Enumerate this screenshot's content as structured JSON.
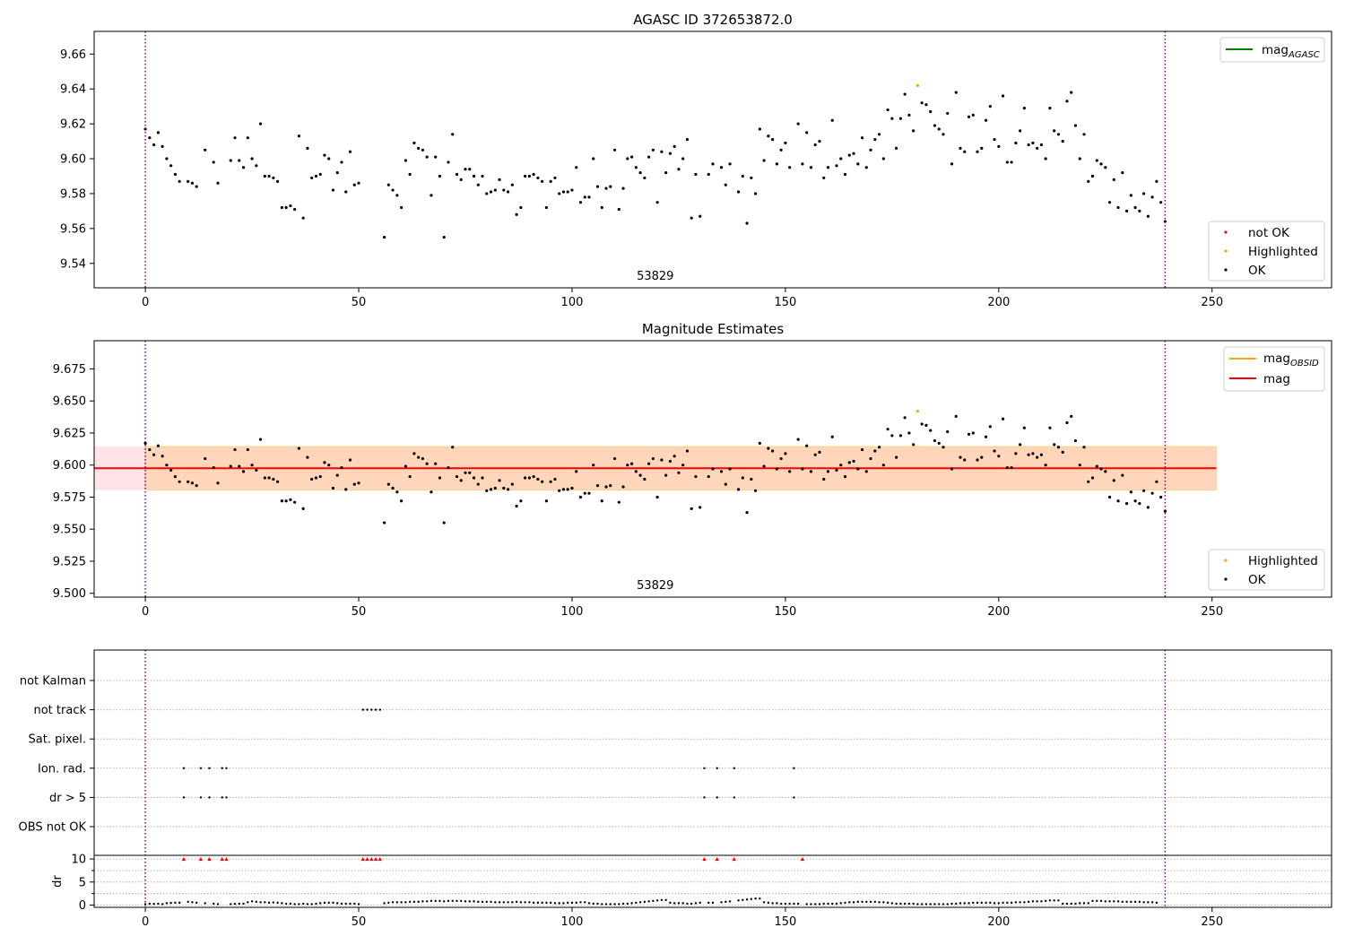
{
  "chart_data": [
    {
      "type": "scatter",
      "title": "AGASC ID 372653872.0",
      "xlim": [
        -12,
        278
      ],
      "ylim": [
        9.526,
        9.673
      ],
      "xticks": [
        0,
        50,
        100,
        150,
        200,
        250
      ],
      "yticks": [
        9.54,
        9.56,
        9.58,
        9.6,
        9.62,
        9.64,
        9.66
      ],
      "obsid_label": "53829",
      "obsid_boundaries": [
        0,
        239
      ],
      "legend_top": {
        "placement": "top-right",
        "entries": [
          {
            "label": "mag",
            "subscript": "AGASC",
            "color": "#008000"
          }
        ]
      },
      "legend_bottom": {
        "placement": "lower-right",
        "entries": [
          {
            "label": "not OK",
            "color": "#ff0000"
          },
          {
            "label": "Highlighted",
            "color": "#ffa500"
          },
          {
            "label": "OK",
            "color": "#000000"
          }
        ]
      },
      "series": [
        {
          "name": "OK",
          "color": "#000000",
          "source": "shared.mag_points"
        },
        {
          "name": "Highlighted",
          "color": "#ffa500",
          "points": [
            [
              181,
              9.642
            ]
          ]
        }
      ]
    },
    {
      "type": "scatter",
      "title": "Magnitude Estimates",
      "xlim": [
        -12,
        278
      ],
      "ylim": [
        9.497,
        9.697
      ],
      "xticks": [
        0,
        50,
        100,
        150,
        200,
        250
      ],
      "yticks": [
        "9.500",
        "9.525",
        "9.550",
        "9.575",
        "9.600",
        "9.625",
        "9.650",
        "9.675"
      ],
      "obsid_label": "53829",
      "obsid_boundaries": [
        0,
        239
      ],
      "mag_line": {
        "value": 9.5975,
        "x_range": [
          -12,
          251
        ],
        "color": "#ff0000"
      },
      "mag_band": {
        "low": 9.5805,
        "high": 9.6145,
        "x_range": [
          -12,
          251
        ],
        "color": "#ffc0cb"
      },
      "mag_obsid_band": {
        "low": 9.5805,
        "high": 9.6145,
        "x_range": [
          0,
          251
        ],
        "color": "#ffa500"
      },
      "legend_top": {
        "placement": "top-right",
        "entries": [
          {
            "label": "mag",
            "subscript": "OBSID",
            "color": "#ffa500"
          },
          {
            "label": "mag",
            "subscript": "",
            "color": "#ff0000"
          }
        ]
      },
      "legend_bottom": {
        "placement": "lower-right",
        "entries": [
          {
            "label": "Highlighted",
            "color": "#ffa500"
          },
          {
            "label": "OK",
            "color": "#000000"
          }
        ]
      },
      "series": [
        {
          "name": "OK",
          "color": "#000000",
          "source": "shared.mag_points"
        },
        {
          "name": "Highlighted",
          "color": "#ffa500",
          "points": [
            [
              181,
              9.642
            ]
          ]
        }
      ]
    },
    {
      "type": "scatter",
      "title": "",
      "xlim": [
        -12,
        278
      ],
      "xticks": [
        0,
        50,
        100,
        150,
        200,
        250
      ],
      "flag_rows": [
        "not Kalman",
        "not track",
        "Sat. pixel.",
        "Ion. rad.",
        "dr > 5",
        "OBS not OK"
      ],
      "flags": {
        "not Kalman": [],
        "not track": [
          51,
          52,
          53,
          54,
          55
        ],
        "Sat. pixel.": [],
        "Ion. rad.": [
          9,
          13,
          15,
          18,
          19,
          131,
          134,
          138,
          152
        ],
        "dr > 5": [
          9,
          13,
          15,
          18,
          19,
          131,
          134,
          138,
          152
        ],
        "OBS not OK": []
      },
      "dr": {
        "ylabel": "dr",
        "ylim": [
          -0.5,
          10.8
        ],
        "yticks": [
          0,
          5,
          10
        ],
        "gridlines": [
          0,
          2.5,
          5,
          7.5,
          10
        ],
        "clipped_value": 10,
        "clipped_x": [
          9,
          13,
          15,
          18,
          19,
          51,
          52,
          53,
          54,
          55,
          131,
          134,
          138,
          152
        ],
        "values": [
          0.2,
          0.3,
          0.25,
          0.3,
          0.2,
          0.4,
          0.45,
          0.5,
          0.5,
          10,
          0.7,
          0.6,
          0.5,
          10,
          0.4,
          10,
          0.3,
          0.2,
          10,
          10,
          0.2,
          0.25,
          0.3,
          0.3,
          0.6,
          0.8,
          0.7,
          0.6,
          0.6,
          0.5,
          0.55,
          0.5,
          0.4,
          0.3,
          0.3,
          0.2,
          0.2,
          0.3,
          0.2,
          0.2,
          0.3,
          0.4,
          0.5,
          0.5,
          0.5,
          0.4,
          0.3,
          0.3,
          0.3,
          0.3,
          0.2,
          10,
          10,
          10,
          10,
          10,
          0.4,
          0.5,
          0.6,
          0.6,
          0.6,
          0.6,
          0.7,
          0.7,
          0.7,
          0.8,
          0.8,
          0.9,
          0.9,
          0.9,
          0.8,
          0.9,
          0.9,
          0.9,
          0.9,
          0.8,
          0.8,
          0.8,
          0.7,
          0.7,
          0.7,
          0.7,
          0.6,
          0.6,
          0.6,
          0.6,
          0.6,
          0.7,
          0.6,
          0.6,
          0.6,
          0.5,
          0.5,
          0.5,
          0.5,
          0.5,
          0.4,
          0.4,
          0.4,
          0.5,
          0.5,
          0.5,
          0.6,
          0.6,
          0.4,
          0.3,
          0.3,
          0.2,
          0.2,
          0.2,
          0.2,
          0.2,
          0.3,
          0.3,
          0.4,
          0.5,
          0.6,
          0.7,
          0.8,
          0.9,
          1.0,
          1.1,
          1.1,
          0.5,
          0.4,
          0.4,
          0.4,
          0.3,
          0.3,
          0.4,
          0.5,
          10,
          0.5,
          0.5,
          10,
          0.6,
          0.7,
          0.8,
          10,
          1.0,
          1.1,
          1.2,
          1.3,
          1.4,
          1.4,
          0.6,
          0.5,
          0.4,
          0.4,
          0.3,
          0.3,
          0.3,
          0.3,
          0.3,
          10,
          0.2,
          0.2,
          0.2,
          0.2,
          0.3,
          0.3,
          0.3,
          0.3,
          0.4,
          0.5,
          0.6,
          0.6,
          0.7,
          0.7,
          0.7,
          0.7,
          0.7,
          0.6,
          0.6,
          0.5,
          0.4,
          0.3,
          0.3,
          0.3,
          0.3,
          0.3,
          0.2,
          0.2,
          0.2,
          0.2,
          0.2,
          0.2,
          0.2,
          0.2,
          0.3,
          0.3,
          0.4,
          0.4,
          0.4,
          0.5,
          0.5,
          0.5,
          0.5,
          0.5,
          0.4,
          0.4,
          0.5,
          0.5,
          0.5,
          0.6,
          0.6,
          0.6,
          0.7,
          0.8,
          0.8,
          0.8,
          0.9,
          1.0,
          1.0,
          1.0,
          0.3,
          0.3,
          0.3,
          0.3,
          0.4,
          0.4,
          0.4,
          0.9,
          0.9,
          0.9,
          0.8,
          0.8,
          0.8,
          0.8,
          0.7,
          0.7,
          0.7,
          0.7,
          0.7,
          0.6,
          0.6,
          0.6,
          0.5
        ]
      }
    }
  ],
  "shared": {
    "mag_points": [
      [
        0,
        9.617
      ],
      [
        1,
        9.612
      ],
      [
        2,
        9.608
      ],
      [
        3,
        9.615
      ],
      [
        4,
        9.607
      ],
      [
        5,
        9.6
      ],
      [
        6,
        9.596
      ],
      [
        7,
        9.591
      ],
      [
        8,
        9.587
      ],
      [
        10,
        9.587
      ],
      [
        11,
        9.586
      ],
      [
        12,
        9.584
      ],
      [
        14,
        9.605
      ],
      [
        16,
        9.598
      ],
      [
        17,
        9.586
      ],
      [
        20,
        9.599
      ],
      [
        21,
        9.612
      ],
      [
        22,
        9.599
      ],
      [
        23,
        9.595
      ],
      [
        24,
        9.612
      ],
      [
        25,
        9.6
      ],
      [
        26,
        9.596
      ],
      [
        27,
        9.62
      ],
      [
        28,
        9.59
      ],
      [
        29,
        9.59
      ],
      [
        30,
        9.589
      ],
      [
        31,
        9.587
      ],
      [
        32,
        9.572
      ],
      [
        33,
        9.572
      ],
      [
        34,
        9.573
      ],
      [
        35,
        9.571
      ],
      [
        36,
        9.613
      ],
      [
        37,
        9.566
      ],
      [
        38,
        9.606
      ],
      [
        39,
        9.589
      ],
      [
        40,
        9.59
      ],
      [
        41,
        9.591
      ],
      [
        42,
        9.602
      ],
      [
        43,
        9.6
      ],
      [
        44,
        9.582
      ],
      [
        45,
        9.592
      ],
      [
        46,
        9.598
      ],
      [
        47,
        9.581
      ],
      [
        48,
        9.604
      ],
      [
        49,
        9.585
      ],
      [
        50,
        9.586
      ],
      [
        56,
        9.555
      ],
      [
        57,
        9.585
      ],
      [
        58,
        9.582
      ],
      [
        59,
        9.579
      ],
      [
        60,
        9.572
      ],
      [
        61,
        9.599
      ],
      [
        62,
        9.591
      ],
      [
        63,
        9.609
      ],
      [
        64,
        9.606
      ],
      [
        65,
        9.605
      ],
      [
        66,
        9.601
      ],
      [
        67,
        9.579
      ],
      [
        68,
        9.601
      ],
      [
        69,
        9.59
      ],
      [
        70,
        9.555
      ],
      [
        71,
        9.598
      ],
      [
        72,
        9.614
      ],
      [
        73,
        9.591
      ],
      [
        74,
        9.588
      ],
      [
        75,
        9.594
      ],
      [
        76,
        9.594
      ],
      [
        77,
        9.59
      ],
      [
        78,
        9.585
      ],
      [
        79,
        9.59
      ],
      [
        80,
        9.58
      ],
      [
        81,
        9.581
      ],
      [
        82,
        9.582
      ],
      [
        83,
        9.588
      ],
      [
        84,
        9.582
      ],
      [
        85,
        9.581
      ],
      [
        86,
        9.585
      ],
      [
        87,
        9.568
      ],
      [
        88,
        9.572
      ],
      [
        89,
        9.59
      ],
      [
        90,
        9.59
      ],
      [
        91,
        9.591
      ],
      [
        92,
        9.589
      ],
      [
        93,
        9.587
      ],
      [
        94,
        9.572
      ],
      [
        95,
        9.587
      ],
      [
        96,
        9.589
      ],
      [
        97,
        9.58
      ],
      [
        98,
        9.581
      ],
      [
        99,
        9.581
      ],
      [
        100,
        9.582
      ],
      [
        101,
        9.595
      ],
      [
        102,
        9.575
      ],
      [
        103,
        9.578
      ],
      [
        104,
        9.578
      ],
      [
        105,
        9.6
      ],
      [
        106,
        9.584
      ],
      [
        107,
        9.572
      ],
      [
        108,
        9.583
      ],
      [
        109,
        9.584
      ],
      [
        110,
        9.605
      ],
      [
        111,
        9.571
      ],
      [
        112,
        9.583
      ],
      [
        113,
        9.6
      ],
      [
        114,
        9.601
      ],
      [
        115,
        9.595
      ],
      [
        116,
        9.592
      ],
      [
        117,
        9.589
      ],
      [
        118,
        9.601
      ],
      [
        119,
        9.605
      ],
      [
        120,
        9.575
      ],
      [
        121,
        9.604
      ],
      [
        122,
        9.592
      ],
      [
        123,
        9.603
      ],
      [
        124,
        9.607
      ],
      [
        125,
        9.594
      ],
      [
        126,
        9.6
      ],
      [
        127,
        9.611
      ],
      [
        128,
        9.566
      ],
      [
        129,
        9.591
      ],
      [
        130,
        9.567
      ],
      [
        132,
        9.591
      ],
      [
        133,
        9.597
      ],
      [
        135,
        9.595
      ],
      [
        136,
        9.585
      ],
      [
        137,
        9.597
      ],
      [
        139,
        9.581
      ],
      [
        140,
        9.59
      ],
      [
        141,
        9.563
      ],
      [
        142,
        9.589
      ],
      [
        143,
        9.58
      ],
      [
        144,
        9.617
      ],
      [
        145,
        9.599
      ],
      [
        146,
        9.613
      ],
      [
        147,
        9.611
      ],
      [
        148,
        9.597
      ],
      [
        149,
        9.605
      ],
      [
        150,
        9.609
      ],
      [
        151,
        9.595
      ],
      [
        153,
        9.62
      ],
      [
        154,
        9.597
      ],
      [
        155,
        9.615
      ],
      [
        156,
        9.595
      ],
      [
        157,
        9.608
      ],
      [
        158,
        9.61
      ],
      [
        159,
        9.589
      ],
      [
        160,
        9.595
      ],
      [
        161,
        9.622
      ],
      [
        162,
        9.596
      ],
      [
        163,
        9.6
      ],
      [
        164,
        9.591
      ],
      [
        165,
        9.602
      ],
      [
        166,
        9.603
      ],
      [
        167,
        9.597
      ],
      [
        168,
        9.612
      ],
      [
        169,
        9.595
      ],
      [
        170,
        9.605
      ],
      [
        171,
        9.611
      ],
      [
        172,
        9.614
      ],
      [
        173,
        9.6
      ],
      [
        174,
        9.628
      ],
      [
        175,
        9.623
      ],
      [
        176,
        9.606
      ],
      [
        177,
        9.623
      ],
      [
        178,
        9.637
      ],
      [
        179,
        9.625
      ],
      [
        180,
        9.616
      ],
      [
        182,
        9.632
      ],
      [
        183,
        9.631
      ],
      [
        184,
        9.627
      ],
      [
        185,
        9.619
      ],
      [
        186,
        9.617
      ],
      [
        187,
        9.614
      ],
      [
        188,
        9.626
      ],
      [
        189,
        9.597
      ],
      [
        190,
        9.638
      ],
      [
        191,
        9.606
      ],
      [
        192,
        9.604
      ],
      [
        193,
        9.624
      ],
      [
        194,
        9.625
      ],
      [
        195,
        9.604
      ],
      [
        196,
        9.606
      ],
      [
        197,
        9.622
      ],
      [
        198,
        9.63
      ],
      [
        199,
        9.611
      ],
      [
        200,
        9.607
      ],
      [
        201,
        9.636
      ],
      [
        202,
        9.598
      ],
      [
        203,
        9.598
      ],
      [
        204,
        9.609
      ],
      [
        205,
        9.616
      ],
      [
        206,
        9.629
      ],
      [
        207,
        9.608
      ],
      [
        208,
        9.609
      ],
      [
        209,
        9.606
      ],
      [
        210,
        9.608
      ],
      [
        211,
        9.6
      ],
      [
        212,
        9.629
      ],
      [
        213,
        9.616
      ],
      [
        214,
        9.614
      ],
      [
        215,
        9.61
      ],
      [
        216,
        9.633
      ],
      [
        217,
        9.638
      ],
      [
        218,
        9.619
      ],
      [
        219,
        9.6
      ],
      [
        220,
        9.614
      ],
      [
        221,
        9.587
      ],
      [
        222,
        9.59
      ],
      [
        223,
        9.599
      ],
      [
        224,
        9.597
      ],
      [
        225,
        9.595
      ],
      [
        226,
        9.575
      ],
      [
        227,
        9.588
      ],
      [
        228,
        9.572
      ],
      [
        229,
        9.592
      ],
      [
        230,
        9.57
      ],
      [
        231,
        9.579
      ],
      [
        232,
        9.572
      ],
      [
        233,
        9.57
      ],
      [
        234,
        9.58
      ],
      [
        235,
        9.567
      ],
      [
        236,
        9.578
      ],
      [
        237,
        9.587
      ],
      [
        238,
        9.575
      ],
      [
        239,
        9.564
      ]
    ]
  }
}
